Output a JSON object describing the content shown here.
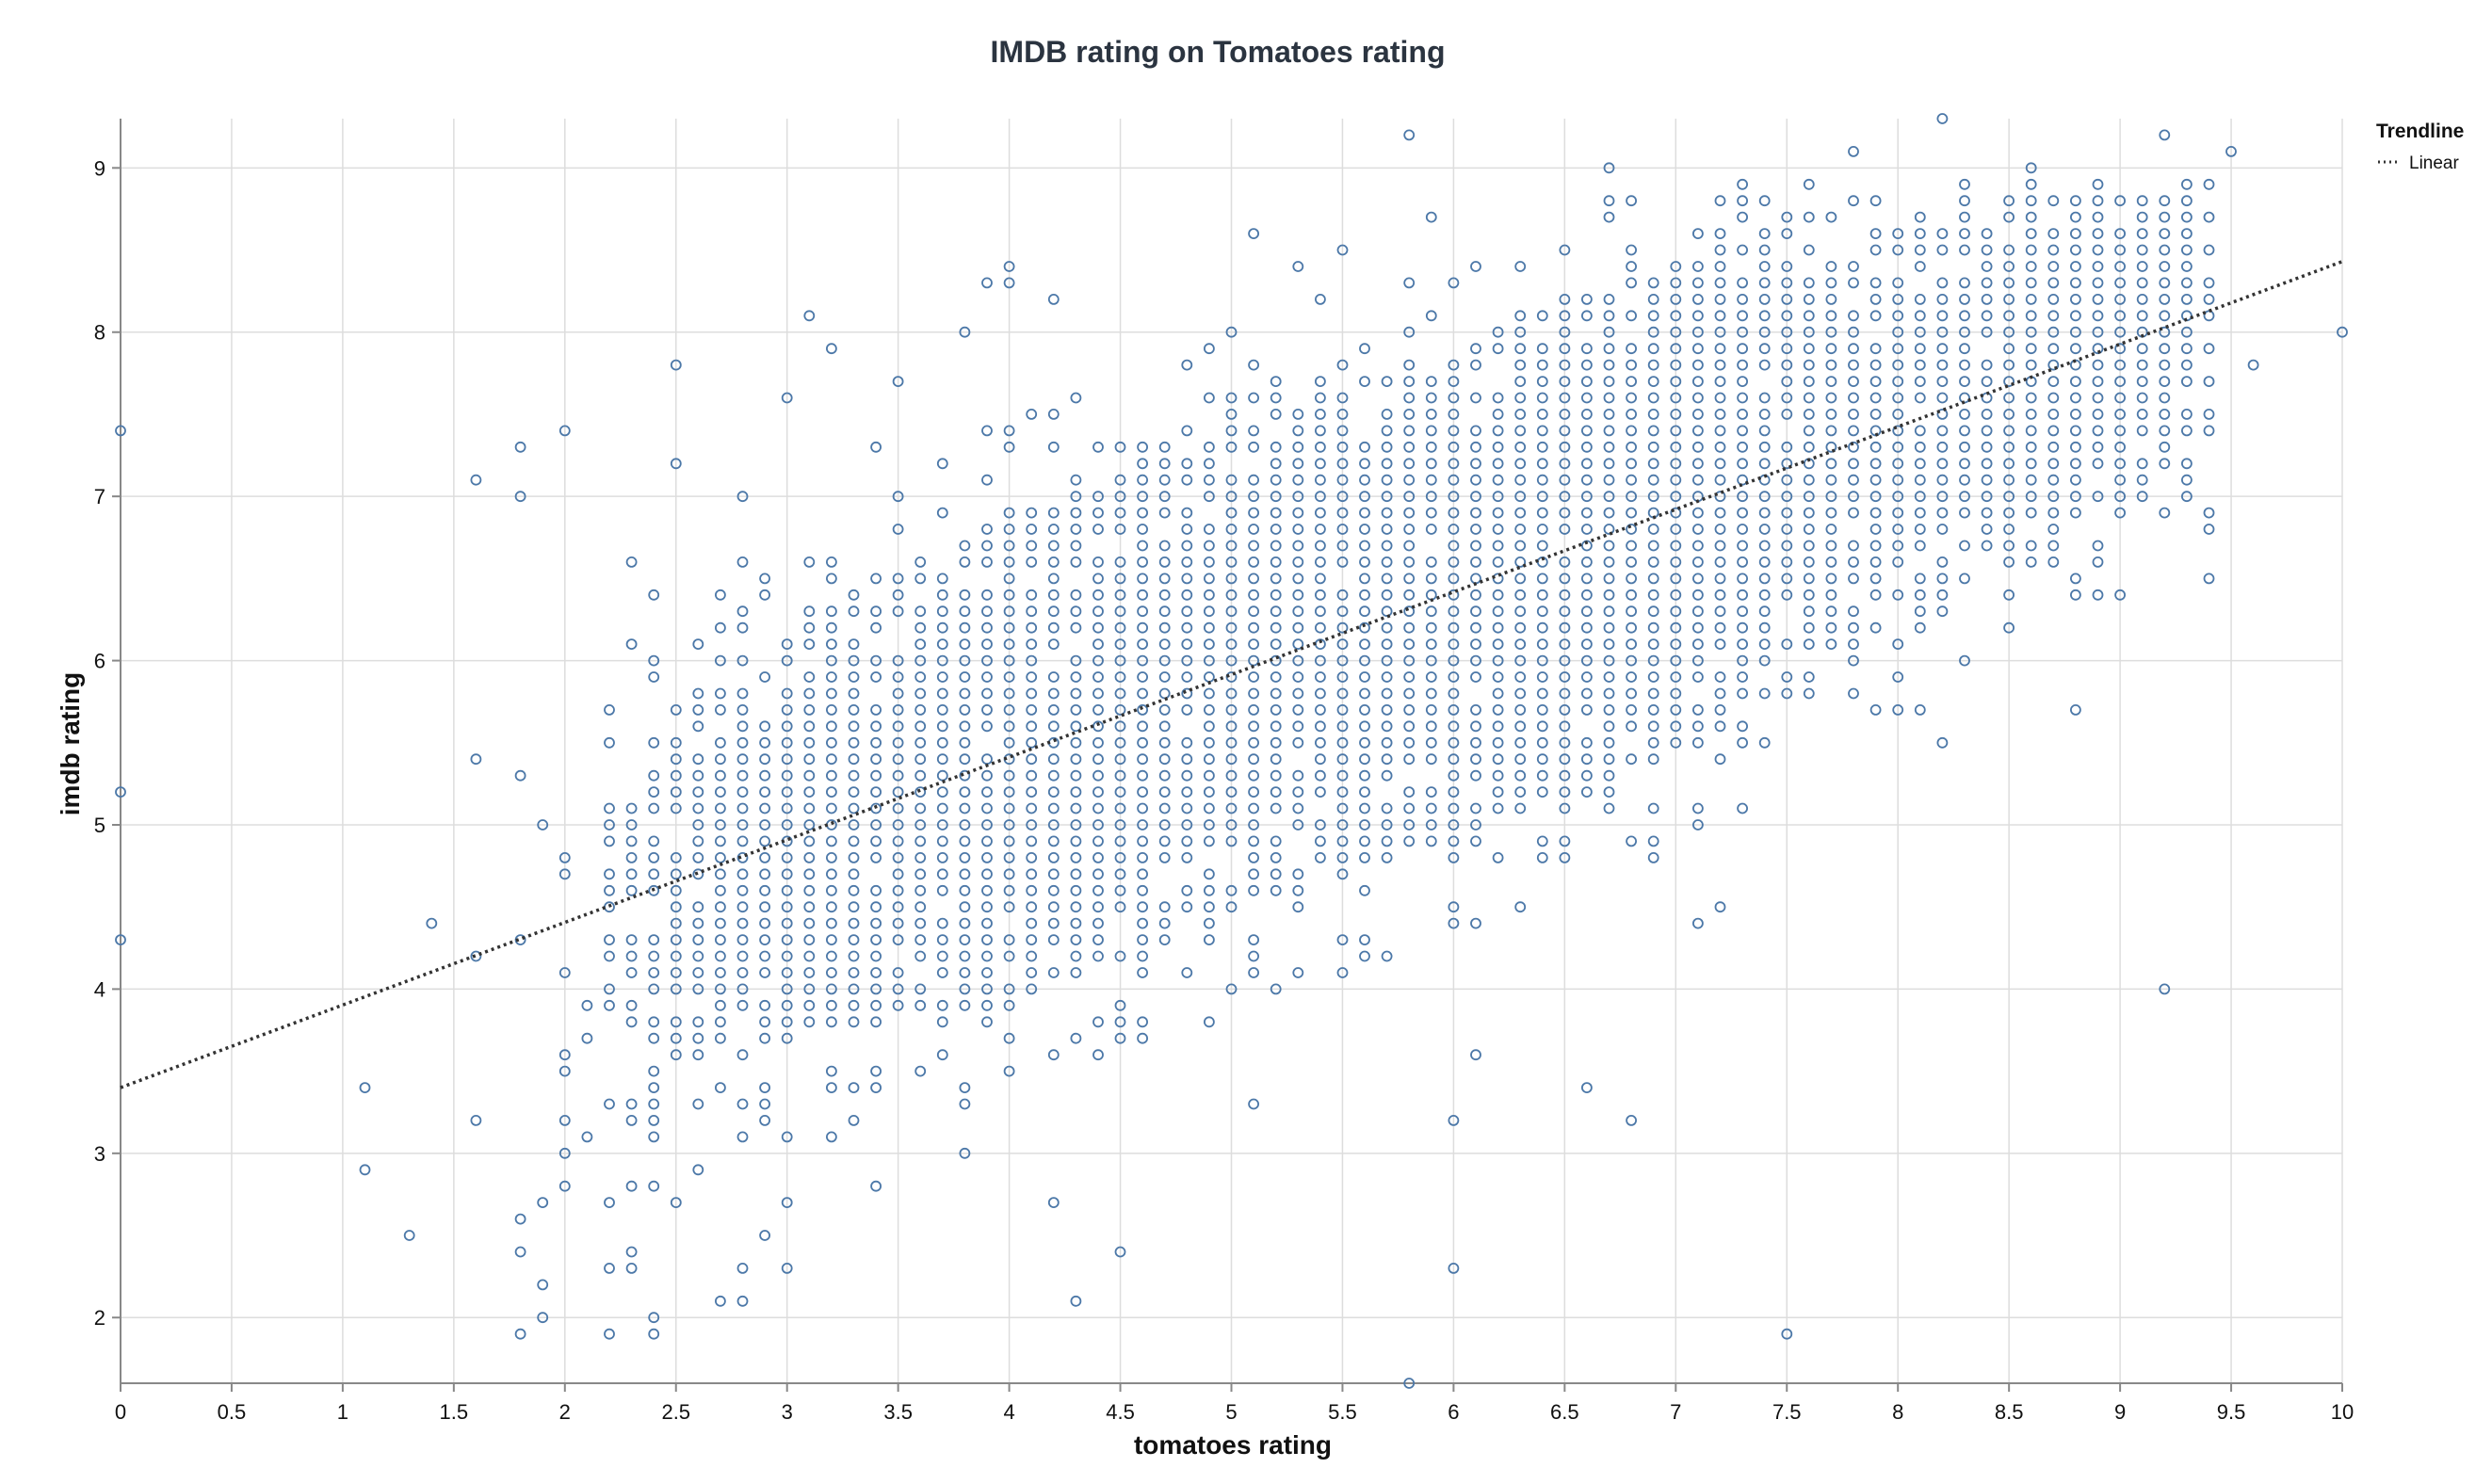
{
  "colors": {
    "point_stroke": "#4c78a8",
    "trendline": "#333333",
    "grid": "#dddddd",
    "axis": "#888888"
  },
  "chart_data": {
    "type": "scatter",
    "title": "IMDB rating on Tomatoes rating",
    "xlabel": "tomatoes rating",
    "ylabel": "imdb rating",
    "xlim": [
      0,
      10
    ],
    "ylim": [
      1.6,
      9.3
    ],
    "x_ticks": [
      0,
      0.5,
      1,
      1.5,
      2,
      2.5,
      3,
      3.5,
      4,
      4.5,
      5,
      5.5,
      6,
      6.5,
      7,
      7.5,
      8,
      8.5,
      9,
      9.5,
      10
    ],
    "x_tick_labels": [
      "0",
      "0.5",
      "1",
      "1.5",
      "2",
      "2.5",
      "3",
      "3.5",
      "4",
      "4.5",
      "5",
      "5.5",
      "6",
      "6.5",
      "7",
      "7.5",
      "8",
      "8.5",
      "9",
      "9.5",
      "10"
    ],
    "y_ticks": [
      2,
      3,
      4,
      5,
      6,
      7,
      8,
      9
    ],
    "y_tick_labels": [
      "2",
      "3",
      "4",
      "5",
      "6",
      "7",
      "8",
      "9"
    ],
    "grid": true,
    "legend": {
      "title": "Trendline",
      "entries": [
        "Linear"
      ],
      "placement": "top-right"
    },
    "trendline": {
      "type": "linear",
      "x": [
        0,
        10
      ],
      "y": [
        3.4,
        8.43
      ]
    },
    "point_generation": {
      "note": "dense point cloud approximated from visible scatter; outliers listed explicitly",
      "x_step": 0.1,
      "y_step": 0.1
    },
    "series": [
      {
        "name": "Linear",
        "outliers": [
          [
            0,
            7.4
          ],
          [
            0,
            5.2
          ],
          [
            0,
            4.3
          ],
          [
            1.1,
            3.4
          ],
          [
            1.1,
            2.9
          ],
          [
            1.3,
            2.5
          ],
          [
            1.4,
            4.4
          ],
          [
            1.6,
            7.1
          ],
          [
            1.6,
            5.4
          ],
          [
            1.6,
            4.2
          ],
          [
            1.6,
            3.2
          ],
          [
            1.8,
            7.3
          ],
          [
            1.8,
            7.0
          ],
          [
            1.8,
            5.3
          ],
          [
            1.8,
            4.3
          ],
          [
            1.8,
            2.6
          ],
          [
            1.8,
            2.4
          ],
          [
            1.8,
            1.9
          ],
          [
            1.9,
            5.0
          ],
          [
            1.9,
            2.7
          ],
          [
            1.9,
            2.2
          ],
          [
            1.9,
            2.0
          ],
          [
            2.0,
            7.4
          ],
          [
            2.0,
            4.8
          ],
          [
            2.0,
            4.7
          ],
          [
            2.0,
            4.1
          ],
          [
            2.0,
            3.6
          ],
          [
            2.0,
            3.5
          ],
          [
            2.0,
            3.2
          ],
          [
            2.0,
            3.0
          ],
          [
            2.0,
            2.8
          ],
          [
            2.1,
            3.9
          ],
          [
            2.1,
            3.7
          ],
          [
            2.1,
            3.1
          ],
          [
            2.2,
            5.0
          ],
          [
            2.2,
            2.7
          ],
          [
            2.2,
            2.3
          ],
          [
            2.2,
            1.9
          ],
          [
            2.3,
            6.6
          ],
          [
            2.3,
            6.1
          ],
          [
            2.3,
            3.3
          ],
          [
            2.3,
            2.8
          ],
          [
            2.3,
            2.4
          ],
          [
            2.3,
            2.3
          ],
          [
            2.4,
            6.4
          ],
          [
            2.4,
            5.9
          ],
          [
            2.4,
            3.5
          ],
          [
            2.4,
            3.2
          ],
          [
            2.4,
            3.1
          ],
          [
            2.4,
            2.8
          ],
          [
            2.4,
            2.0
          ],
          [
            2.4,
            1.9
          ],
          [
            2.5,
            7.8
          ],
          [
            2.5,
            7.2
          ],
          [
            2.5,
            2.7
          ],
          [
            2.6,
            2.9
          ],
          [
            2.7,
            2.1
          ],
          [
            2.8,
            7.0
          ],
          [
            2.8,
            6.3
          ],
          [
            2.8,
            2.3
          ],
          [
            2.8,
            2.1
          ],
          [
            2.9,
            6.4
          ],
          [
            2.9,
            2.5
          ],
          [
            3.0,
            7.6
          ],
          [
            3.0,
            3.1
          ],
          [
            3.0,
            2.7
          ],
          [
            3.0,
            2.3
          ],
          [
            3.1,
            8.1
          ],
          [
            3.1,
            6.6
          ],
          [
            3.2,
            7.9
          ],
          [
            3.2,
            3.1
          ],
          [
            3.4,
            7.3
          ],
          [
            3.4,
            2.8
          ],
          [
            3.5,
            7.7
          ],
          [
            3.8,
            8.0
          ],
          [
            3.8,
            3.0
          ],
          [
            3.9,
            8.3
          ],
          [
            4.0,
            8.4
          ],
          [
            4.0,
            8.3
          ],
          [
            4.2,
            8.2
          ],
          [
            4.2,
            2.7
          ],
          [
            4.3,
            2.1
          ],
          [
            4.5,
            2.4
          ],
          [
            5.1,
            8.6
          ],
          [
            5.1,
            3.3
          ],
          [
            5.3,
            8.4
          ],
          [
            5.5,
            8.5
          ],
          [
            5.6,
            4.2
          ],
          [
            5.8,
            9.2
          ],
          [
            5.8,
            1.6
          ],
          [
            5.9,
            8.7
          ],
          [
            6.0,
            3.2
          ],
          [
            6.0,
            2.3
          ],
          [
            6.1,
            3.6
          ],
          [
            6.6,
            3.4
          ],
          [
            6.7,
            9.0
          ],
          [
            6.8,
            3.2
          ],
          [
            7.1,
            4.4
          ],
          [
            7.2,
            4.5
          ],
          [
            7.5,
            1.9
          ],
          [
            7.8,
            9.1
          ],
          [
            8.2,
            9.3
          ],
          [
            8.2,
            5.5
          ],
          [
            8.6,
            9.0
          ],
          [
            8.8,
            5.7
          ],
          [
            9.2,
            9.2
          ],
          [
            9.2,
            4.0
          ],
          [
            9.4,
            6.5
          ],
          [
            9.5,
            9.1
          ],
          [
            9.6,
            7.8
          ],
          [
            10.0,
            8.0
          ]
        ]
      }
    ]
  }
}
